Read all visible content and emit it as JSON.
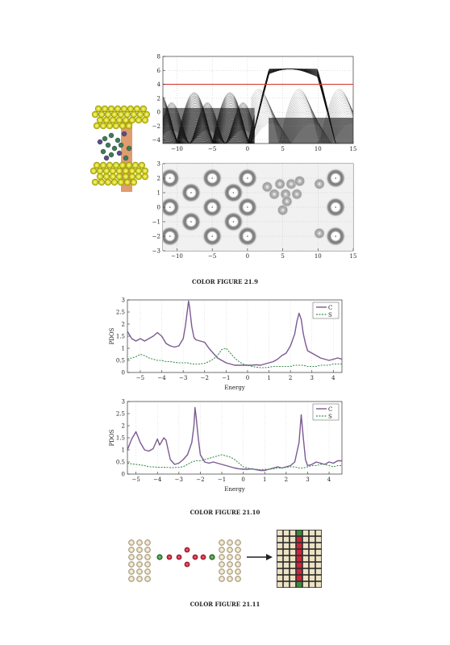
{
  "figures": {
    "fig1": {
      "caption": "COLOR FIGURE 21.9"
    },
    "fig2": {
      "caption": "COLOR FIGURE 21.10"
    },
    "fig3": {
      "caption": "COLOR FIGURE 21.11"
    }
  },
  "colors": {
    "carbon": "#7b5a91",
    "sulfur": "#3f8c52",
    "fermi_line": "#d83a32",
    "gold_atom": "#d7d520",
    "red_atom": "#c8263a",
    "green_atom": "#3a8a3a"
  },
  "chart_data": [
    {
      "type": "line",
      "panel": "band-structure",
      "xlim": [
        -12,
        15
      ],
      "ylim": [
        -4.5,
        8
      ],
      "xticks": [
        -10,
        -5,
        0,
        5,
        10,
        15
      ],
      "yticks": [
        -4,
        -2,
        0,
        2,
        4,
        6,
        8
      ],
      "reference_line_y": 4
    },
    {
      "type": "heatmap",
      "panel": "wavefunction-map",
      "xlim": [
        -12,
        15
      ],
      "ylim": [
        -3,
        3
      ],
      "xticks": [
        -10,
        -5,
        0,
        5,
        10,
        15
      ],
      "yticks": [
        -3,
        -2,
        -1,
        0,
        1,
        2,
        3
      ],
      "ring_centers": [
        [
          -11,
          -2
        ],
        [
          -11,
          0
        ],
        [
          -11,
          2
        ],
        [
          -8,
          -1
        ],
        [
          -8,
          1
        ],
        [
          -5,
          -2
        ],
        [
          -5,
          0
        ],
        [
          -5,
          2
        ],
        [
          -2,
          -1
        ],
        [
          -2,
          1
        ],
        [
          0,
          -2
        ],
        [
          0,
          0
        ],
        [
          0,
          2
        ],
        [
          12.5,
          -2
        ],
        [
          12.5,
          0
        ],
        [
          12.5,
          2
        ]
      ],
      "blob_centers": [
        [
          2.8,
          1.4
        ],
        [
          3.8,
          0.9
        ],
        [
          4.6,
          1.6
        ],
        [
          5.4,
          0.9
        ],
        [
          6.2,
          1.6
        ],
        [
          7.0,
          0.9
        ],
        [
          7.4,
          1.8
        ],
        [
          5.0,
          -0.2
        ],
        [
          5.6,
          0.4
        ],
        [
          10.2,
          1.6
        ],
        [
          10.2,
          -1.8
        ]
      ]
    },
    {
      "type": "line",
      "panel": "pdos-top",
      "xlabel": "Energy",
      "ylabel": "PDOS",
      "xlim": [
        -5.6,
        4.4
      ],
      "ylim": [
        0,
        3
      ],
      "xticks": [
        -5,
        -4,
        -3,
        -2,
        -1,
        0,
        1,
        2,
        3,
        4
      ],
      "yticks": [
        0,
        0.5,
        1,
        1.5,
        2,
        2.5,
        3
      ],
      "legend_position": "top-right",
      "series": [
        {
          "name": "C",
          "style": "solid",
          "x": [
            -5.6,
            -5.4,
            -5.2,
            -5.0,
            -4.8,
            -4.6,
            -4.4,
            -4.2,
            -4.0,
            -3.8,
            -3.6,
            -3.4,
            -3.2,
            -3.0,
            -2.9,
            -2.8,
            -2.75,
            -2.7,
            -2.6,
            -2.5,
            -2.4,
            -2.2,
            -2.0,
            -1.8,
            -1.6,
            -1.4,
            -1.2,
            -1.0,
            -0.8,
            -0.6,
            -0.4,
            -0.2,
            0.0,
            0.2,
            0.4,
            0.6,
            0.8,
            1.0,
            1.2,
            1.4,
            1.6,
            1.8,
            2.0,
            2.2,
            2.3,
            2.4,
            2.5,
            2.6,
            2.7,
            2.8,
            3.0,
            3.2,
            3.4,
            3.6,
            3.8,
            4.0,
            4.2,
            4.4
          ],
          "y": [
            1.7,
            1.4,
            1.3,
            1.4,
            1.3,
            1.4,
            1.5,
            1.65,
            1.5,
            1.2,
            1.1,
            1.05,
            1.1,
            1.4,
            1.9,
            2.6,
            2.95,
            2.7,
            1.9,
            1.45,
            1.35,
            1.3,
            1.25,
            1.0,
            0.8,
            0.6,
            0.5,
            0.4,
            0.35,
            0.3,
            0.3,
            0.3,
            0.3,
            0.3,
            0.32,
            0.3,
            0.35,
            0.4,
            0.45,
            0.55,
            0.7,
            0.8,
            1.1,
            1.6,
            2.1,
            2.45,
            2.2,
            1.6,
            1.2,
            0.9,
            0.8,
            0.7,
            0.6,
            0.55,
            0.5,
            0.55,
            0.6,
            0.55
          ]
        },
        {
          "name": "S",
          "style": "dashed",
          "x": [
            -5.6,
            -5.4,
            -5.2,
            -5.0,
            -4.8,
            -4.6,
            -4.4,
            -4.2,
            -4.0,
            -3.8,
            -3.6,
            -3.4,
            -3.2,
            -3.0,
            -2.8,
            -2.6,
            -2.4,
            -2.2,
            -2.0,
            -1.8,
            -1.6,
            -1.4,
            -1.2,
            -1.0,
            -0.8,
            -0.6,
            -0.4,
            -0.2,
            0.0,
            0.2,
            0.4,
            0.6,
            0.8,
            1.0,
            1.2,
            1.4,
            1.6,
            1.8,
            2.0,
            2.2,
            2.4,
            2.6,
            2.8,
            3.0,
            3.2,
            3.4,
            3.6,
            3.8,
            4.0,
            4.2,
            4.4
          ],
          "y": [
            0.55,
            0.6,
            0.65,
            0.75,
            0.7,
            0.6,
            0.55,
            0.5,
            0.5,
            0.45,
            0.45,
            0.42,
            0.4,
            0.4,
            0.4,
            0.35,
            0.35,
            0.35,
            0.38,
            0.45,
            0.55,
            0.7,
            0.95,
            1.0,
            0.8,
            0.6,
            0.45,
            0.35,
            0.3,
            0.25,
            0.22,
            0.2,
            0.2,
            0.22,
            0.25,
            0.25,
            0.25,
            0.25,
            0.25,
            0.3,
            0.3,
            0.3,
            0.25,
            0.25,
            0.25,
            0.3,
            0.3,
            0.3,
            0.35,
            0.35,
            0.35
          ]
        }
      ]
    },
    {
      "type": "line",
      "panel": "pdos-bottom",
      "xlabel": "Energy",
      "ylabel": "PDOS",
      "xlim": [
        -5.4,
        4.6
      ],
      "ylim": [
        0,
        3
      ],
      "xticks": [
        -5,
        -4,
        -3,
        -2,
        -1,
        0,
        1,
        2,
        3,
        4
      ],
      "yticks": [
        0,
        0.5,
        1,
        1.5,
        2,
        2.5,
        3
      ],
      "legend_position": "top-right",
      "series": [
        {
          "name": "C",
          "style": "solid",
          "x": [
            -5.4,
            -5.2,
            -5.0,
            -4.8,
            -4.6,
            -4.4,
            -4.2,
            -4.0,
            -3.9,
            -3.8,
            -3.7,
            -3.6,
            -3.5,
            -3.4,
            -3.2,
            -3.0,
            -2.8,
            -2.6,
            -2.4,
            -2.3,
            -2.25,
            -2.2,
            -2.1,
            -2.0,
            -1.8,
            -1.6,
            -1.4,
            -1.2,
            -1.0,
            -0.8,
            -0.6,
            -0.4,
            -0.2,
            0.0,
            0.2,
            0.4,
            0.6,
            0.8,
            1.0,
            1.2,
            1.4,
            1.6,
            1.8,
            2.0,
            2.2,
            2.4,
            2.6,
            2.7,
            2.8,
            2.9,
            3.0,
            3.2,
            3.4,
            3.6,
            3.8,
            4.0,
            4.2,
            4.4,
            4.6
          ],
          "y": [
            1.0,
            1.45,
            1.75,
            1.3,
            1.0,
            0.95,
            1.05,
            1.45,
            1.2,
            1.35,
            1.5,
            1.4,
            1.0,
            0.6,
            0.4,
            0.45,
            0.6,
            0.8,
            1.3,
            2.0,
            2.75,
            2.4,
            1.5,
            0.8,
            0.5,
            0.45,
            0.5,
            0.45,
            0.4,
            0.35,
            0.3,
            0.25,
            0.22,
            0.2,
            0.2,
            0.22,
            0.18,
            0.15,
            0.15,
            0.2,
            0.25,
            0.3,
            0.25,
            0.3,
            0.35,
            0.5,
            1.3,
            2.45,
            1.5,
            0.6,
            0.35,
            0.4,
            0.5,
            0.45,
            0.4,
            0.5,
            0.45,
            0.55,
            0.55
          ]
        },
        {
          "name": "S",
          "style": "dashed",
          "x": [
            -5.4,
            -5.2,
            -5.0,
            -4.8,
            -4.6,
            -4.4,
            -4.2,
            -4.0,
            -3.8,
            -3.6,
            -3.4,
            -3.2,
            -3.0,
            -2.8,
            -2.6,
            -2.4,
            -2.2,
            -2.0,
            -1.8,
            -1.6,
            -1.4,
            -1.2,
            -1.0,
            -0.8,
            -0.6,
            -0.4,
            -0.2,
            0.0,
            0.2,
            0.4,
            0.6,
            0.8,
            1.0,
            1.2,
            1.4,
            1.6,
            1.8,
            2.0,
            2.2,
            2.4,
            2.6,
            2.8,
            3.0,
            3.2,
            3.4,
            3.6,
            3.8,
            4.0,
            4.2,
            4.4,
            4.6
          ],
          "y": [
            0.45,
            0.42,
            0.4,
            0.38,
            0.35,
            0.3,
            0.3,
            0.28,
            0.28,
            0.28,
            0.27,
            0.27,
            0.28,
            0.3,
            0.4,
            0.5,
            0.55,
            0.55,
            0.6,
            0.65,
            0.7,
            0.75,
            0.8,
            0.75,
            0.7,
            0.6,
            0.45,
            0.3,
            0.25,
            0.2,
            0.2,
            0.18,
            0.2,
            0.2,
            0.22,
            0.25,
            0.25,
            0.28,
            0.3,
            0.3,
            0.25,
            0.25,
            0.3,
            0.35,
            0.35,
            0.4,
            0.4,
            0.35,
            0.3,
            0.35,
            0.35
          ]
        }
      ]
    }
  ]
}
